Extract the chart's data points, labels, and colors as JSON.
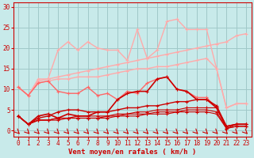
{
  "xlabel": "Vent moyen/en rafales ( km/h )",
  "xlim": [
    0,
    23
  ],
  "ylim": [
    0,
    31
  ],
  "yticks": [
    0,
    5,
    10,
    15,
    20,
    25,
    30
  ],
  "xticks": [
    0,
    1,
    2,
    3,
    4,
    5,
    6,
    7,
    8,
    9,
    10,
    11,
    12,
    13,
    14,
    15,
    16,
    17,
    18,
    19,
    20,
    21,
    22,
    23
  ],
  "bg_color": "#c8eaea",
  "grid_color": "#a0c8c8",
  "lines": [
    {
      "color": "#ffaaaa",
      "lw": 1.0,
      "y": [
        10.5,
        8.5,
        12.5,
        12.5,
        19.5,
        21.5,
        19.5,
        21.5,
        20.0,
        19.5,
        19.5,
        17.0,
        24.5,
        17.5,
        19.5,
        26.5,
        27.0,
        24.5,
        24.5,
        24.5,
        15.0,
        5.5,
        6.5,
        6.5
      ]
    },
    {
      "color": "#ffaaaa",
      "lw": 1.0,
      "y": [
        10.5,
        8.5,
        12.0,
        12.5,
        13.0,
        13.5,
        14.0,
        14.5,
        15.0,
        15.5,
        16.0,
        16.5,
        17.0,
        17.5,
        18.0,
        18.5,
        19.0,
        19.5,
        20.0,
        20.5,
        21.0,
        21.5,
        23.0,
        23.5
      ]
    },
    {
      "color": "#ffaaaa",
      "lw": 1.0,
      "y": [
        10.5,
        8.5,
        11.5,
        12.0,
        12.5,
        12.5,
        13.0,
        13.0,
        13.0,
        13.5,
        14.0,
        14.5,
        15.0,
        15.0,
        15.5,
        15.5,
        16.0,
        16.5,
        17.0,
        17.5,
        15.0,
        5.5,
        6.5,
        6.5
      ]
    },
    {
      "color": "#ff6666",
      "lw": 1.0,
      "y": [
        10.5,
        8.5,
        11.5,
        12.0,
        9.5,
        9.0,
        9.0,
        10.5,
        8.5,
        9.0,
        7.5,
        9.5,
        9.0,
        11.5,
        12.5,
        13.0,
        10.0,
        9.5,
        8.0,
        8.0,
        5.5,
        1.0,
        1.5,
        1.5
      ]
    },
    {
      "color": "#cc0000",
      "lw": 1.2,
      "y": [
        3.5,
        1.5,
        3.5,
        4.0,
        3.0,
        4.0,
        3.5,
        3.5,
        4.5,
        4.5,
        7.5,
        9.0,
        9.5,
        9.5,
        12.5,
        13.0,
        10.0,
        9.5,
        7.5,
        7.5,
        5.5,
        1.0,
        1.5,
        1.5
      ]
    },
    {
      "color": "#cc0000",
      "lw": 1.0,
      "y": [
        3.5,
        1.5,
        3.0,
        3.5,
        4.5,
        5.0,
        5.0,
        4.5,
        4.5,
        4.5,
        5.0,
        5.5,
        5.5,
        6.0,
        6.0,
        6.5,
        7.0,
        7.0,
        7.5,
        7.5,
        6.0,
        1.0,
        1.5,
        1.5
      ]
    },
    {
      "color": "#cc0000",
      "lw": 0.8,
      "y": [
        3.5,
        1.5,
        2.5,
        2.5,
        3.0,
        3.0,
        3.5,
        3.5,
        3.5,
        3.5,
        4.0,
        4.0,
        4.5,
        4.5,
        5.0,
        5.0,
        5.0,
        5.5,
        5.5,
        5.5,
        5.5,
        0.5,
        1.5,
        1.5
      ]
    },
    {
      "color": "#cc0000",
      "lw": 0.8,
      "y": [
        3.5,
        1.5,
        2.5,
        2.5,
        3.0,
        3.0,
        3.0,
        3.0,
        3.0,
        3.5,
        3.5,
        4.0,
        4.0,
        4.0,
        4.5,
        4.5,
        4.5,
        5.0,
        5.0,
        5.0,
        4.5,
        0.5,
        1.0,
        1.0
      ]
    },
    {
      "color": "#cc0000",
      "lw": 0.8,
      "y": [
        3.5,
        1.5,
        2.5,
        2.5,
        2.5,
        3.0,
        3.0,
        3.0,
        3.0,
        3.0,
        3.5,
        3.5,
        3.5,
        4.0,
        4.0,
        4.0,
        4.5,
        4.5,
        4.5,
        4.5,
        4.0,
        0.5,
        1.0,
        1.0
      ]
    }
  ],
  "arrow_color": "#cc0000",
  "marker": "D",
  "marker_size": 2.5
}
